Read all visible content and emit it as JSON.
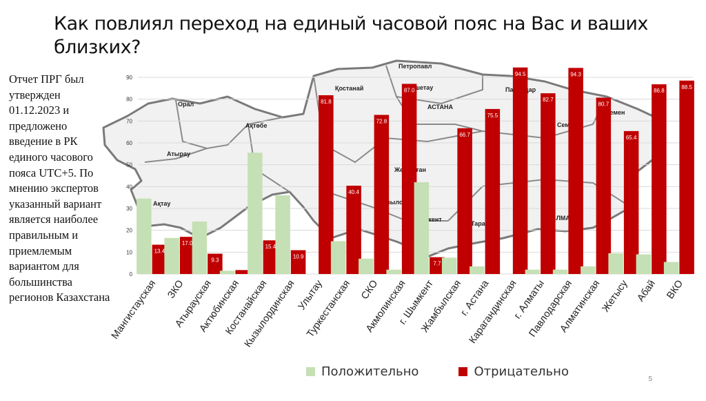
{
  "slide": {
    "title": "Как повлиял переход на единый часовой пояс на Вас и ваших близких?",
    "side_note": "Отчет ПРГ был утвержден 01.12.2023 и предложено введение в РК единого часового пояса UTC+5. По мнению экспертов указанный вариант является наиболее правильным и приемлемым вариантом для большинства регионов Казахстана",
    "page_number": "5"
  },
  "map_labels": [
    "Орал",
    "Ақтөбе",
    "Атырау",
    "Ақтау",
    "Қостанай",
    "Петропавл",
    "Көкшетау",
    "АСТАНА",
    "Павлодар",
    "Семей",
    "Өскемен",
    "Жезқазған",
    "Қызылорда",
    "Шымкент",
    "Тараз",
    "АЛМАТЫ"
  ],
  "colors": {
    "positive": "#c5e0b4",
    "negative": "#c00000",
    "map_stroke": "#7a7a7a",
    "map_fill": "#f1f1f1"
  },
  "chart_data": {
    "type": "bar",
    "categories": [
      "Мангистауская",
      "ЗКО",
      "Атырауская",
      "Актюбинская",
      "Костанайская",
      "Кызылординская",
      "Улытау",
      "Туркестанская",
      "СКО",
      "Акмолинская",
      "г. Шымкент",
      "Жамбылская",
      "г. Астана",
      "Карагандинская",
      "г. Алматы",
      "Павлодарская",
      "Алматинская",
      "Жетысу",
      "Абай",
      "ВКО"
    ],
    "series": [
      {
        "name": "Положительно",
        "color": "#c5e0b4",
        "values": [
          34.5,
          16.5,
          24.0,
          1.5,
          55.5,
          36.0,
          0.0,
          15.0,
          7.0,
          2.0,
          42.0,
          7.5,
          3.5,
          0.0,
          2.0,
          2.0,
          3.5,
          9.5,
          9.0,
          5.5
        ],
        "labels": []
      },
      {
        "name": "Отрицательно",
        "color": "#c00000",
        "values": [
          13.4,
          17.0,
          9.3,
          1.8,
          15.4,
          10.9,
          81.8,
          40.4,
          72.8,
          87.0,
          7.7,
          66.7,
          75.5,
          94.5,
          82.7,
          94.3,
          80.7,
          65.4,
          86.8,
          88.5
        ],
        "labels": [
          "13.4",
          "17.0",
          "9.3",
          "",
          "15.4",
          "10.9",
          "81.8",
          "40.4",
          "72.8",
          "87.0",
          "7.7",
          "66.7",
          "75.5",
          "94.5",
          "82.7",
          "94.3",
          "80.7",
          "65.4",
          "86.8",
          "88.5"
        ]
      }
    ],
    "y_ticks": [
      "0",
      "10",
      "20",
      "30",
      "40",
      "50",
      "60",
      "70",
      "80",
      "90"
    ],
    "ylim": [
      0,
      90
    ],
    "grid": true,
    "legend": "bottom"
  }
}
